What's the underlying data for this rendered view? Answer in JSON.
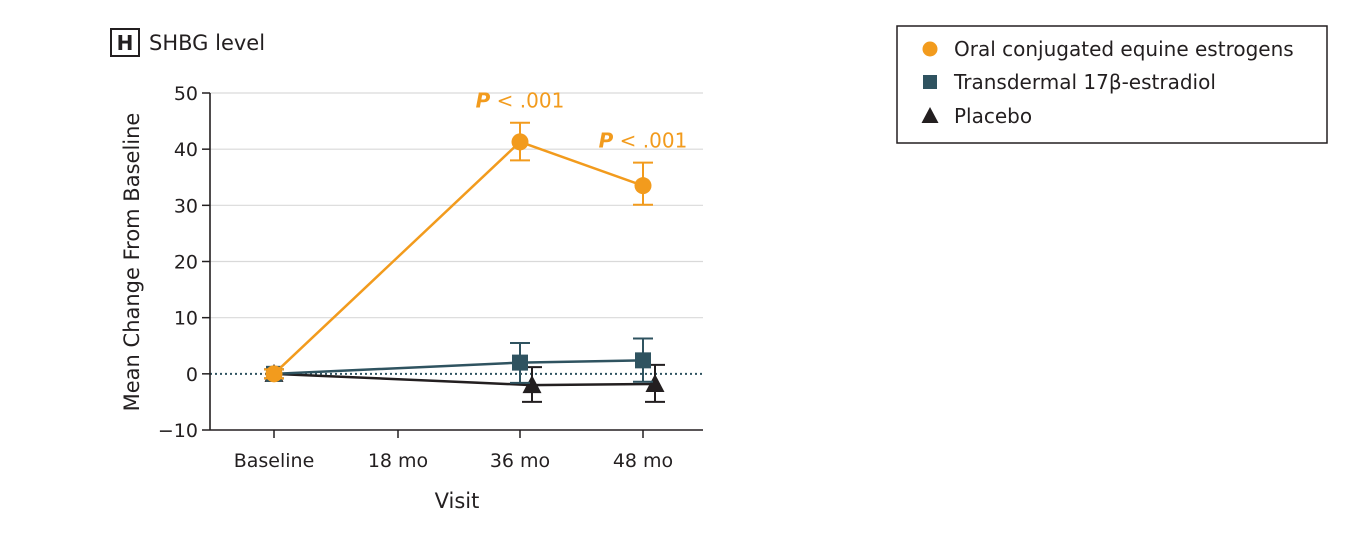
{
  "panel": {
    "letter": "H",
    "title": "SHBG level"
  },
  "chart_data": {
    "type": "line",
    "title": "SHBG level",
    "xlabel": "Visit",
    "ylabel": "Mean Change From Baseline",
    "categories": [
      "Baseline",
      "18 mo",
      "36 mo",
      "48 mo"
    ],
    "ylim": [
      -10,
      50
    ],
    "yticks": [
      -10,
      0,
      10,
      20,
      30,
      40,
      50
    ],
    "grid": "horizontal",
    "reference_line": {
      "y": 0,
      "style": "dotted"
    },
    "legend_position": "top-right",
    "series": [
      {
        "name": "Oral conjugated equine estrogens",
        "marker": "circle",
        "color": "#f29b1d",
        "points": [
          {
            "x": "Baseline",
            "y": 0,
            "low": -0.8,
            "high": 0.8
          },
          {
            "x": "36 mo",
            "y": 41.3,
            "low": 38.0,
            "high": 44.7
          },
          {
            "x": "48 mo",
            "y": 33.5,
            "low": 30.1,
            "high": 37.6
          }
        ]
      },
      {
        "name": "Transdermal 17β-estradiol",
        "marker": "square",
        "color": "#2f5360",
        "points": [
          {
            "x": "Baseline",
            "y": 0,
            "low": -0.8,
            "high": 0.8
          },
          {
            "x": "36 mo",
            "y": 2.0,
            "low": -1.6,
            "high": 5.5
          },
          {
            "x": "48 mo",
            "y": 2.4,
            "low": -1.4,
            "high": 6.3
          }
        ]
      },
      {
        "name": "Placebo",
        "marker": "triangle",
        "color": "#231f20",
        "points": [
          {
            "x": "Baseline",
            "y": 0,
            "low": -0.8,
            "high": 0.8
          },
          {
            "x": "36 mo",
            "y": -2.0,
            "low": -5.0,
            "high": 1.2
          },
          {
            "x": "48 mo",
            "y": -1.8,
            "low": -5.0,
            "high": 1.6
          }
        ]
      }
    ],
    "annotations": [
      {
        "x": "36 mo",
        "y": 47.4,
        "prefix": "P",
        "text": " < .001",
        "color": "#f29b1d"
      },
      {
        "x": "48 mo",
        "y": 40.3,
        "prefix": "P",
        "text": " < .001",
        "color": "#f29b1d"
      }
    ]
  }
}
